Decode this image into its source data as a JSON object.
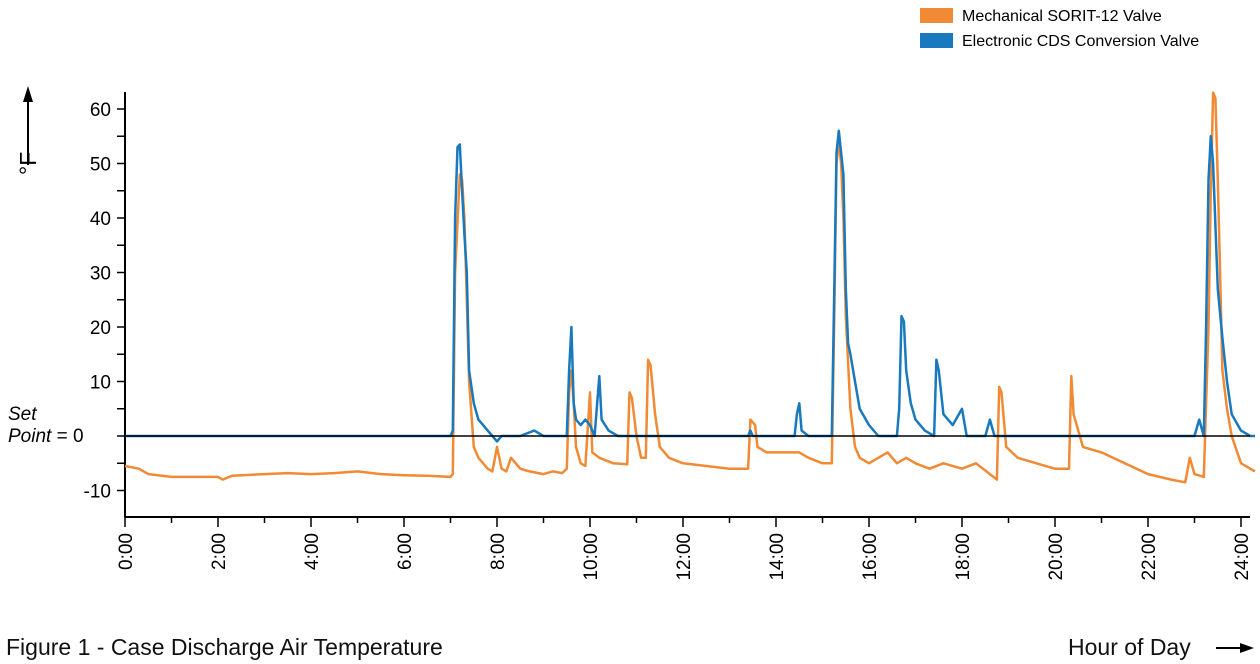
{
  "chart_data": {
    "type": "line",
    "title": "",
    "caption": "Figure 1 - Case Discharge Air Temperature",
    "xlabel": "Hour of Day",
    "ylabel": "°F",
    "setpoint_label_line1": "Set",
    "setpoint_label_line2": "Point",
    "setpoint_label_suffix": " = 0",
    "xlim": [
      0,
      24.3
    ],
    "ylim": [
      -15,
      63
    ],
    "y_ticks": [
      {
        "value": 60,
        "label": "60"
      },
      {
        "value": 50,
        "label": "50"
      },
      {
        "value": 40,
        "label": "40"
      },
      {
        "value": 30,
        "label": "30"
      },
      {
        "value": 20,
        "label": "20"
      },
      {
        "value": 10,
        "label": "10"
      },
      {
        "value": -10,
        "label": "-10"
      }
    ],
    "x_ticks": [
      {
        "value": 0,
        "label": "0:00"
      },
      {
        "value": 2,
        "label": "2:00"
      },
      {
        "value": 4,
        "label": "4:00"
      },
      {
        "value": 6,
        "label": "6:00"
      },
      {
        "value": 8,
        "label": "8:00"
      },
      {
        "value": 10,
        "label": "10:00"
      },
      {
        "value": 12,
        "label": "12:00"
      },
      {
        "value": 14,
        "label": "14:00"
      },
      {
        "value": 16,
        "label": "16:00"
      },
      {
        "value": 18,
        "label": "18:00"
      },
      {
        "value": 20,
        "label": "20:00"
      },
      {
        "value": 22,
        "label": "22:00"
      },
      {
        "value": 24,
        "label": "24:00"
      }
    ],
    "legend_position": "top-right",
    "grid": false,
    "series": [
      {
        "name": "Mechanical SORIT-12 Valve",
        "color": "#F08A35",
        "points": [
          [
            0,
            -5.5
          ],
          [
            0.3,
            -6
          ],
          [
            0.5,
            -7
          ],
          [
            1,
            -7.5
          ],
          [
            1.5,
            -7.5
          ],
          [
            2,
            -7.5
          ],
          [
            2.1,
            -8
          ],
          [
            2.3,
            -7.3
          ],
          [
            3,
            -7
          ],
          [
            3.5,
            -6.8
          ],
          [
            4,
            -7
          ],
          [
            4.5,
            -6.8
          ],
          [
            5,
            -6.5
          ],
          [
            5.5,
            -7
          ],
          [
            6,
            -7.2
          ],
          [
            6.5,
            -7.3
          ],
          [
            7,
            -7.5
          ],
          [
            7.05,
            -7
          ],
          [
            7.1,
            30
          ],
          [
            7.2,
            48
          ],
          [
            7.25,
            47
          ],
          [
            7.3,
            40
          ],
          [
            7.35,
            25
          ],
          [
            7.4,
            10
          ],
          [
            7.5,
            -2
          ],
          [
            7.6,
            -4
          ],
          [
            7.7,
            -5
          ],
          [
            7.8,
            -6
          ],
          [
            7.9,
            -6.5
          ],
          [
            8.0,
            -2
          ],
          [
            8.1,
            -6
          ],
          [
            8.2,
            -6.5
          ],
          [
            8.3,
            -4
          ],
          [
            8.5,
            -6
          ],
          [
            8.7,
            -6.5
          ],
          [
            9.0,
            -7
          ],
          [
            9.2,
            -6.5
          ],
          [
            9.4,
            -6.8
          ],
          [
            9.5,
            -6
          ],
          [
            9.55,
            8
          ],
          [
            9.6,
            12
          ],
          [
            9.65,
            6
          ],
          [
            9.7,
            -2
          ],
          [
            9.8,
            -5
          ],
          [
            9.9,
            -5.5
          ],
          [
            10.0,
            8
          ],
          [
            10.05,
            -3
          ],
          [
            10.2,
            -4
          ],
          [
            10.5,
            -5
          ],
          [
            10.8,
            -5.2
          ],
          [
            10.85,
            8
          ],
          [
            10.9,
            7
          ],
          [
            11.0,
            0
          ],
          [
            11.1,
            -4
          ],
          [
            11.2,
            -4
          ],
          [
            11.25,
            14
          ],
          [
            11.3,
            13
          ],
          [
            11.4,
            4
          ],
          [
            11.5,
            -2
          ],
          [
            11.7,
            -4
          ],
          [
            12,
            -5
          ],
          [
            12.5,
            -5.5
          ],
          [
            13,
            -6
          ],
          [
            13.4,
            -6
          ],
          [
            13.45,
            3
          ],
          [
            13.55,
            2
          ],
          [
            13.6,
            -2
          ],
          [
            13.8,
            -3
          ],
          [
            14.0,
            -3
          ],
          [
            14.5,
            -3
          ],
          [
            14.7,
            -4
          ],
          [
            15.0,
            -5
          ],
          [
            15.2,
            -5
          ],
          [
            15.25,
            20
          ],
          [
            15.3,
            50
          ],
          [
            15.35,
            54
          ],
          [
            15.4,
            50
          ],
          [
            15.45,
            40
          ],
          [
            15.5,
            22
          ],
          [
            15.6,
            5
          ],
          [
            15.7,
            -2
          ],
          [
            15.8,
            -4
          ],
          [
            16.0,
            -5
          ],
          [
            16.2,
            -4
          ],
          [
            16.4,
            -3
          ],
          [
            16.6,
            -5
          ],
          [
            16.8,
            -4
          ],
          [
            17.0,
            -5
          ],
          [
            17.3,
            -6
          ],
          [
            17.6,
            -5
          ],
          [
            18.0,
            -6
          ],
          [
            18.3,
            -5
          ],
          [
            18.6,
            -7
          ],
          [
            18.75,
            -8
          ],
          [
            18.8,
            9
          ],
          [
            18.85,
            8
          ],
          [
            18.95,
            -2
          ],
          [
            19.2,
            -4
          ],
          [
            19.6,
            -5
          ],
          [
            20.0,
            -6
          ],
          [
            20.3,
            -6
          ],
          [
            20.35,
            11
          ],
          [
            20.4,
            4
          ],
          [
            20.6,
            -2
          ],
          [
            21.0,
            -3
          ],
          [
            21.5,
            -5
          ],
          [
            22.0,
            -7
          ],
          [
            22.5,
            -8
          ],
          [
            22.8,
            -8.5
          ],
          [
            22.9,
            -4
          ],
          [
            23.0,
            -7
          ],
          [
            23.2,
            -7.5
          ],
          [
            23.3,
            20
          ],
          [
            23.35,
            45
          ],
          [
            23.4,
            63
          ],
          [
            23.45,
            62
          ],
          [
            23.5,
            47
          ],
          [
            23.55,
            30
          ],
          [
            23.6,
            12
          ],
          [
            23.7,
            5
          ],
          [
            23.8,
            0
          ],
          [
            24.0,
            -5
          ],
          [
            24.3,
            -6.5
          ]
        ]
      },
      {
        "name": "Electronic CDS Conversion Valve",
        "color": "#1979BE",
        "points": [
          [
            0,
            0
          ],
          [
            0.3,
            0
          ],
          [
            1,
            0
          ],
          [
            2,
            0
          ],
          [
            3,
            0
          ],
          [
            4,
            0
          ],
          [
            5,
            0
          ],
          [
            6,
            0
          ],
          [
            7,
            0
          ],
          [
            7.05,
            1
          ],
          [
            7.1,
            40
          ],
          [
            7.15,
            53
          ],
          [
            7.2,
            53.5
          ],
          [
            7.25,
            45
          ],
          [
            7.3,
            37
          ],
          [
            7.35,
            30
          ],
          [
            7.4,
            12
          ],
          [
            7.5,
            6
          ],
          [
            7.6,
            3
          ],
          [
            7.7,
            2
          ],
          [
            7.8,
            1
          ],
          [
            7.9,
            0
          ],
          [
            8.0,
            -1
          ],
          [
            8.1,
            0
          ],
          [
            8.5,
            0
          ],
          [
            8.8,
            1
          ],
          [
            9.0,
            0
          ],
          [
            9.5,
            0
          ],
          [
            9.55,
            12
          ],
          [
            9.6,
            20
          ],
          [
            9.65,
            6
          ],
          [
            9.7,
            3
          ],
          [
            9.8,
            2
          ],
          [
            9.9,
            3
          ],
          [
            10.0,
            2
          ],
          [
            10.1,
            0
          ],
          [
            10.2,
            11
          ],
          [
            10.25,
            3
          ],
          [
            10.4,
            1
          ],
          [
            10.6,
            0
          ],
          [
            11.0,
            0
          ],
          [
            12,
            0
          ],
          [
            13,
            0
          ],
          [
            13.4,
            0
          ],
          [
            13.45,
            1
          ],
          [
            13.5,
            0
          ],
          [
            14,
            0
          ],
          [
            14.4,
            0
          ],
          [
            14.45,
            4
          ],
          [
            14.5,
            6
          ],
          [
            14.55,
            1
          ],
          [
            14.7,
            0
          ],
          [
            15.0,
            0
          ],
          [
            15.2,
            0
          ],
          [
            15.25,
            25
          ],
          [
            15.3,
            52
          ],
          [
            15.35,
            56
          ],
          [
            15.4,
            52
          ],
          [
            15.45,
            48
          ],
          [
            15.5,
            27
          ],
          [
            15.55,
            17
          ],
          [
            15.6,
            15
          ],
          [
            15.7,
            10
          ],
          [
            15.8,
            5
          ],
          [
            16.0,
            2
          ],
          [
            16.2,
            0
          ],
          [
            16.6,
            0
          ],
          [
            16.65,
            5
          ],
          [
            16.7,
            22
          ],
          [
            16.75,
            21
          ],
          [
            16.8,
            12
          ],
          [
            16.9,
            6
          ],
          [
            17.0,
            3
          ],
          [
            17.2,
            1
          ],
          [
            17.4,
            0
          ],
          [
            17.45,
            14
          ],
          [
            17.5,
            12
          ],
          [
            17.6,
            4
          ],
          [
            17.8,
            2
          ],
          [
            18.0,
            5
          ],
          [
            18.1,
            0
          ],
          [
            18.5,
            0
          ],
          [
            18.6,
            3
          ],
          [
            18.7,
            0
          ],
          [
            19,
            0
          ],
          [
            19.5,
            0
          ],
          [
            20,
            0
          ],
          [
            20.5,
            0
          ],
          [
            21,
            0
          ],
          [
            21.7,
            0
          ],
          [
            22,
            0
          ],
          [
            22.5,
            0
          ],
          [
            23.0,
            0
          ],
          [
            23.1,
            3
          ],
          [
            23.2,
            0
          ],
          [
            23.25,
            20
          ],
          [
            23.3,
            47
          ],
          [
            23.35,
            55
          ],
          [
            23.4,
            50
          ],
          [
            23.5,
            27
          ],
          [
            23.6,
            18
          ],
          [
            23.7,
            10
          ],
          [
            23.8,
            4
          ],
          [
            24.0,
            1
          ],
          [
            24.2,
            0
          ],
          [
            24.3,
            0
          ]
        ]
      }
    ]
  }
}
